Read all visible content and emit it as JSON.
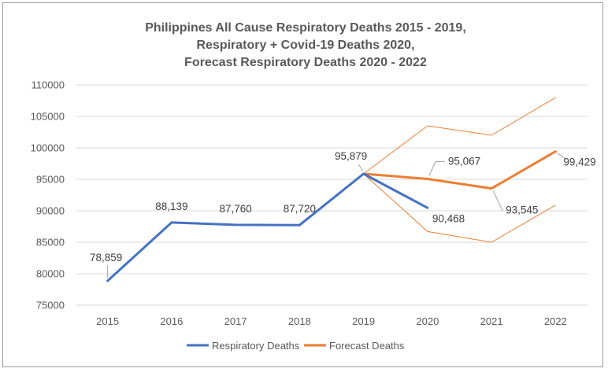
{
  "chart_data": {
    "type": "line",
    "title_lines": [
      "Philippines All Cause Respiratory Deaths 2015 - 2019,",
      "Respiratory + Covid-19 Deaths 2020,",
      "Forecast Respiratory Deaths 2020 - 2022"
    ],
    "categories": [
      "2015",
      "2016",
      "2017",
      "2018",
      "2019",
      "2020",
      "2021",
      "2022"
    ],
    "ylim": [
      75000,
      110000
    ],
    "yticks": [
      75000,
      80000,
      85000,
      90000,
      95000,
      100000,
      105000,
      110000
    ],
    "ytick_labels": [
      "75000",
      "80000",
      "85000",
      "90000",
      "95000",
      "100000",
      "105000",
      "110000"
    ],
    "grid": true,
    "legend_position": "bottom",
    "series": [
      {
        "name": "Respiratory Deaths",
        "color": "#4472c4",
        "values": [
          78859,
          88139,
          87760,
          87720,
          95879,
          90468,
          null,
          null
        ],
        "labels": [
          "78,859",
          "88,139",
          "87,760",
          "87,720",
          "95,879",
          "90,468",
          "",
          ""
        ]
      },
      {
        "name": "Forecast Deaths",
        "color": "#ed7d31",
        "values": [
          null,
          null,
          null,
          null,
          95879,
          95067,
          93545,
          99429
        ],
        "labels": [
          "",
          "",
          "",
          "",
          "",
          "95,067",
          "93,545",
          "99,429"
        ]
      }
    ],
    "bounds": {
      "color": "#ed7d31",
      "upper": [
        null,
        null,
        null,
        null,
        95879,
        103500,
        102000,
        108000
      ],
      "lower": [
        null,
        null,
        null,
        null,
        95879,
        86700,
        85000,
        90900
      ]
    }
  }
}
